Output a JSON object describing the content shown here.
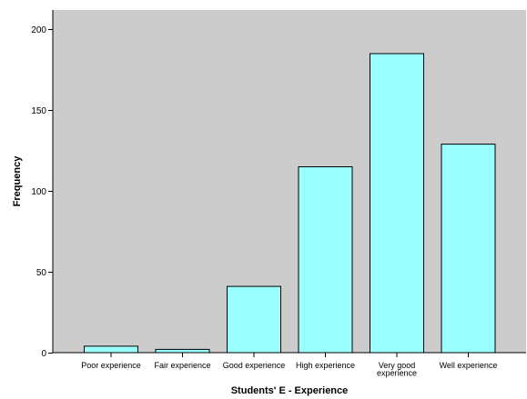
{
  "chart_data": {
    "type": "bar",
    "title": "",
    "xlabel": "Students' E - Experience",
    "ylabel": "Frequency",
    "categories": [
      [
        "Poor experience"
      ],
      [
        "Fair experience"
      ],
      [
        "Good experience"
      ],
      [
        "High experience"
      ],
      [
        "Very good",
        "experience"
      ],
      [
        "Well experience"
      ]
    ],
    "values": [
      4,
      2,
      41,
      115,
      185,
      129
    ],
    "ylim": [
      0,
      212
    ],
    "yticks": [
      0,
      50,
      100,
      150,
      200
    ],
    "grid": false,
    "legend": "none",
    "colors": {
      "plot_background": "#cccccc",
      "bar_fill": "#99ffff",
      "bar_stroke": "#000000"
    }
  }
}
